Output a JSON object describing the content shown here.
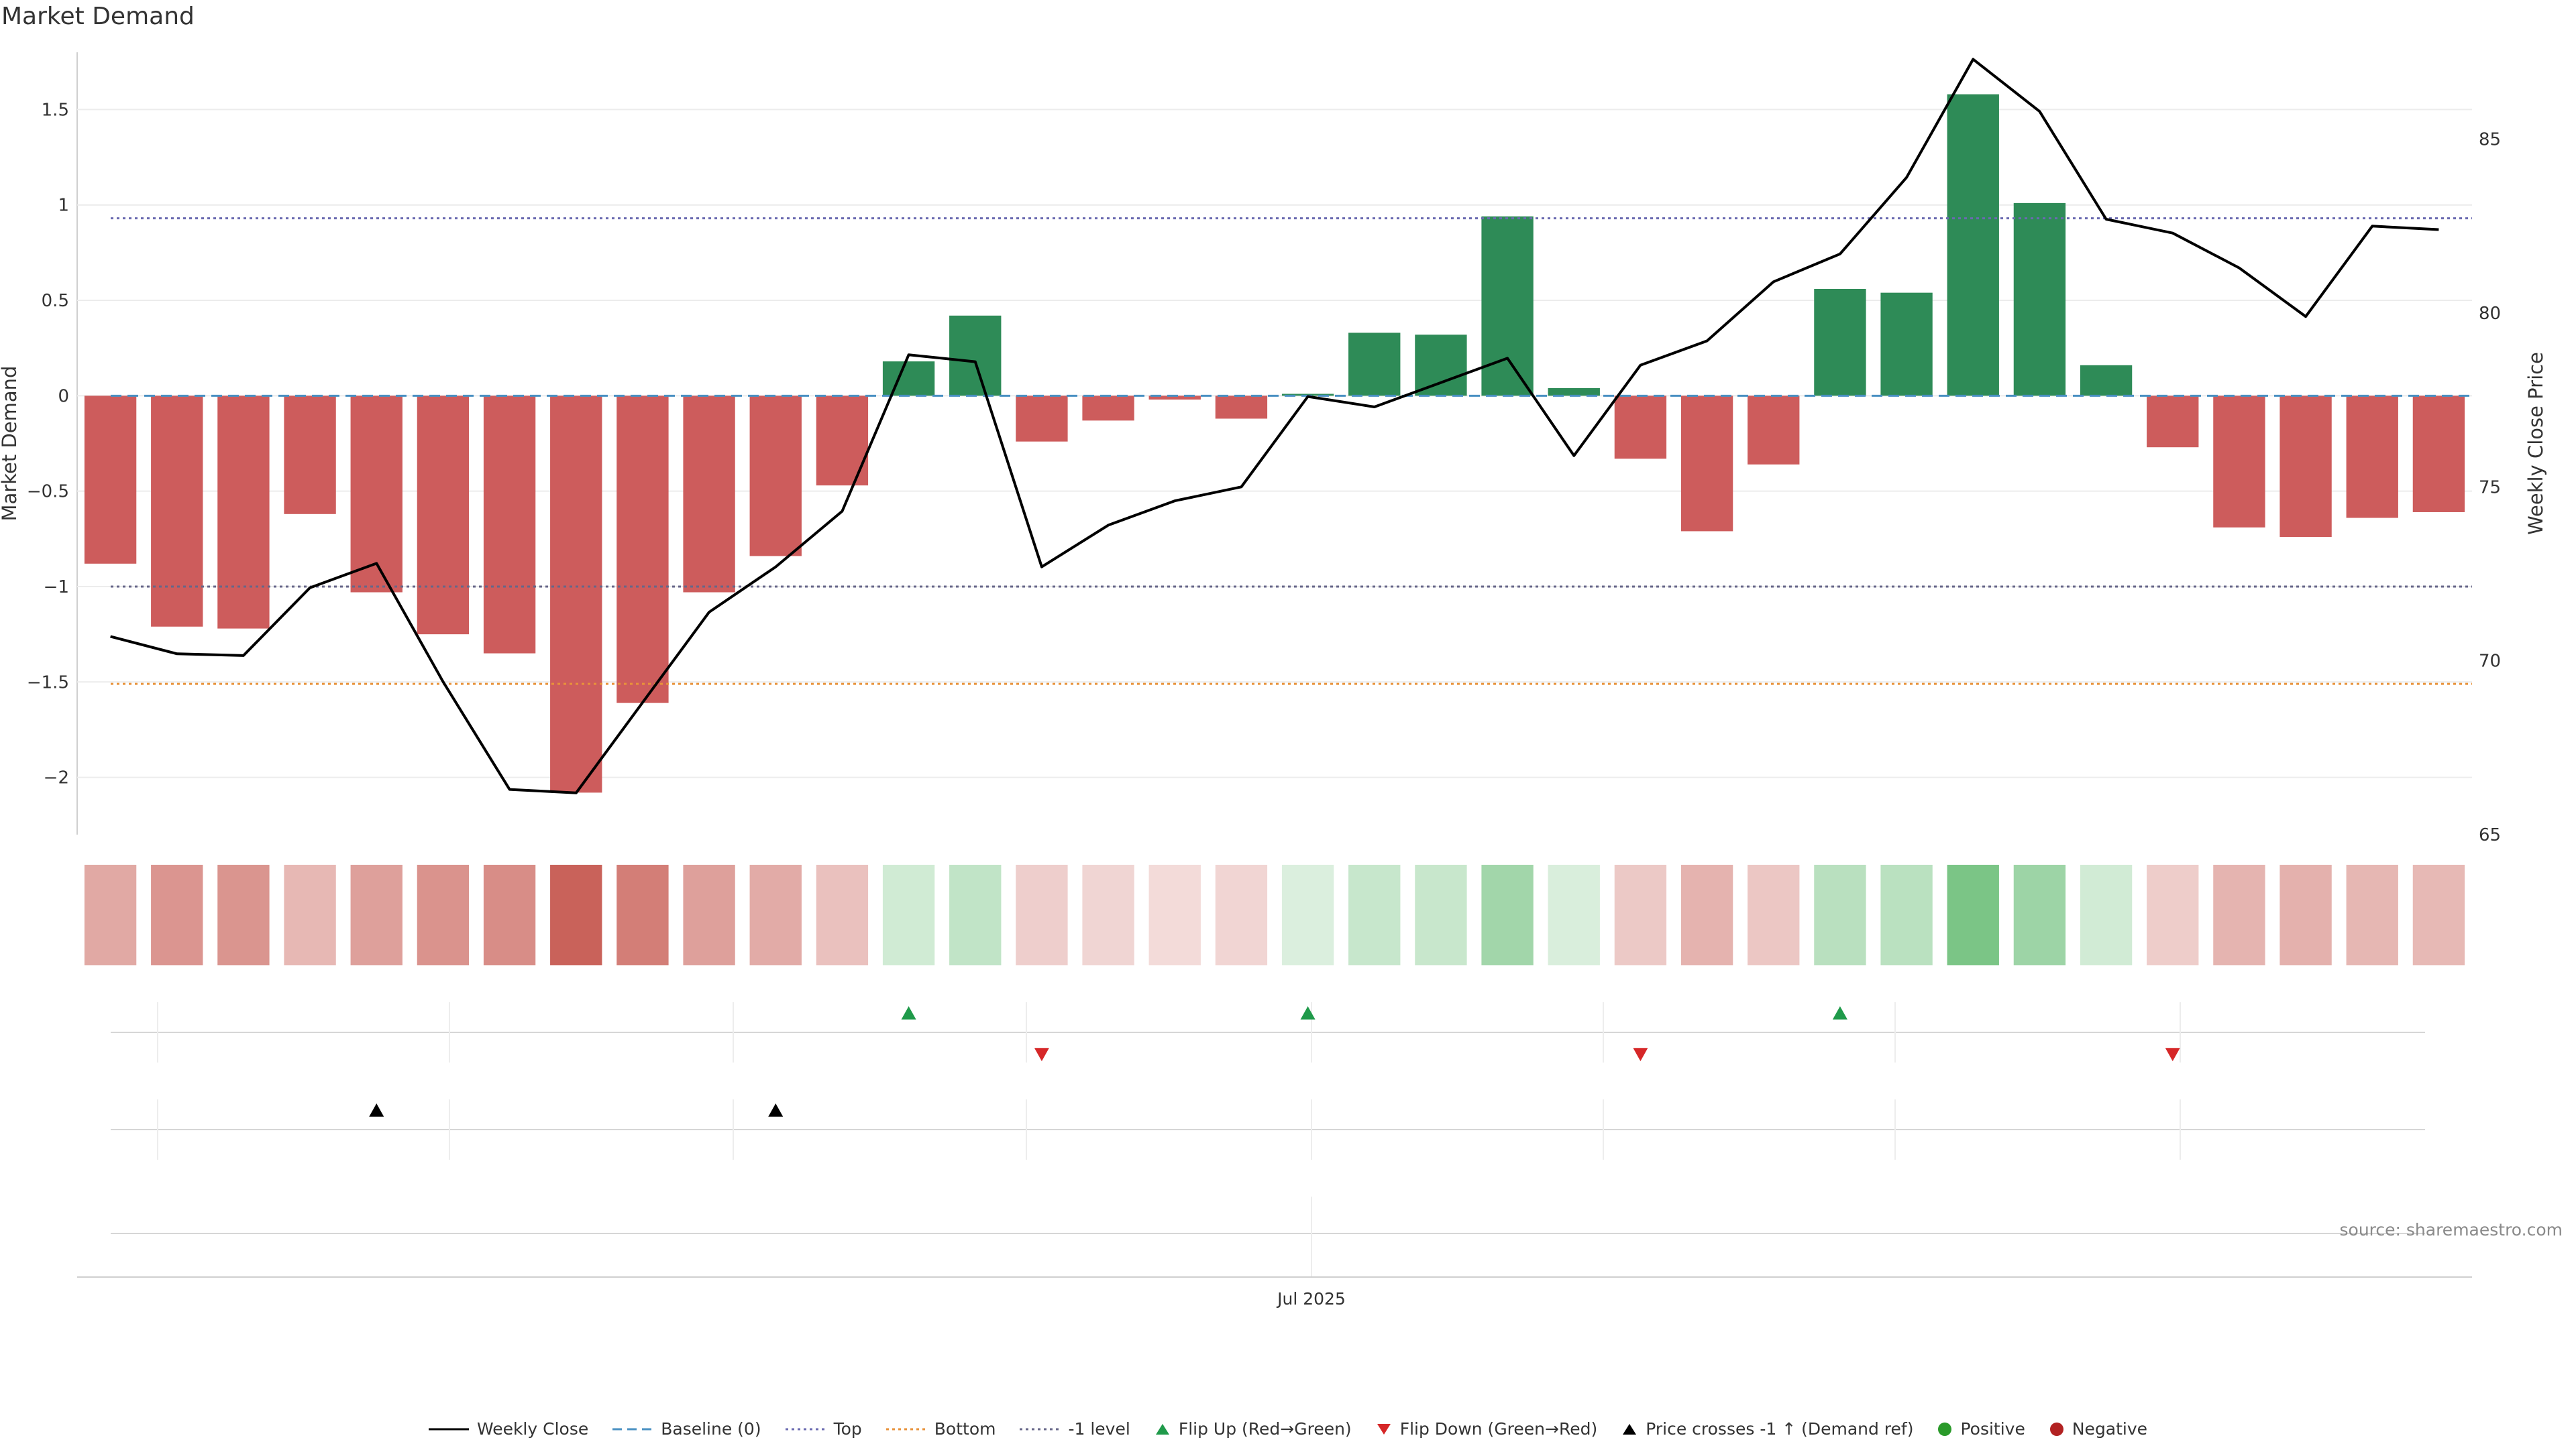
{
  "title": "Market Demand",
  "source": "source: sharemaestro.com",
  "colors": {
    "positive_bar": "#2e8b57",
    "negative_bar": "#cd5c5c",
    "line": "#000000",
    "baseline": "#4a90c2",
    "top": "#6a6ab0",
    "bottom": "#e8923a",
    "minus1": "#666688",
    "flip_up": "#1f9a4a",
    "flip_down": "#d62728",
    "price_cross": "#000000",
    "positive_dot": "#2a9a2a",
    "negative_dot": "#b22222"
  },
  "chart_data": {
    "type": "bar",
    "title": "Market Demand",
    "ylabel": "Market Demand",
    "y2label": "Weekly Close Price",
    "xtick_label": "Jul 2025",
    "ylim": [
      -2.3,
      1.8
    ],
    "y2lim": [
      65,
      87.5
    ],
    "yticks": [
      1.5,
      1,
      0.5,
      0,
      -0.5,
      -1,
      -1.5,
      -2
    ],
    "ytick_labels": [
      "1.5",
      "1",
      "0.5",
      "0",
      "−0.5",
      "−1",
      "−1.5",
      "−2"
    ],
    "y2ticks": [
      85,
      80,
      75,
      70,
      65
    ],
    "y2tick_labels": [
      "85",
      "80",
      "75",
      "70",
      "65"
    ],
    "reference_lines": {
      "baseline": 0,
      "top": 0.93,
      "bottom": -1.51,
      "minus1": -1.0
    },
    "demand": [
      -0.88,
      -1.21,
      -1.22,
      -0.62,
      -1.03,
      -1.25,
      -1.35,
      -2.08,
      -1.61,
      -1.03,
      -0.84,
      -0.47,
      0.18,
      0.42,
      -0.24,
      -0.13,
      -0.02,
      -0.12,
      0.01,
      0.33,
      0.32,
      0.94,
      0.04,
      -0.33,
      -0.71,
      -0.36,
      0.56,
      0.54,
      1.58,
      1.01,
      0.16,
      -0.27,
      -0.69,
      -0.74,
      -0.64,
      -0.61
    ],
    "close": [
      70.7,
      70.2,
      70.15,
      72.1,
      72.8,
      69.4,
      66.3,
      66.2,
      68.8,
      71.4,
      72.7,
      74.3,
      78.8,
      78.6,
      72.7,
      73.9,
      74.6,
      75.0,
      77.6,
      77.3,
      78.0,
      78.7,
      75.9,
      78.5,
      79.2,
      80.9,
      81.7,
      83.9,
      87.3,
      85.8,
      82.7,
      82.3,
      81.3,
      79.9,
      82.5,
      82.4
    ],
    "flip_up_indices": [
      12,
      18,
      26
    ],
    "flip_down_indices": [
      14,
      23,
      31
    ],
    "price_cross_indices": [
      4,
      10
    ],
    "legend": [
      {
        "label": "Weekly Close",
        "marker": "line"
      },
      {
        "label": "Baseline (0)",
        "marker": "dash"
      },
      {
        "label": "Top",
        "marker": "dot"
      },
      {
        "label": "Bottom",
        "marker": "dot"
      },
      {
        "label": "-1 level",
        "marker": "dot"
      },
      {
        "label": "Flip Up (Red→Green)",
        "marker": "triangle-up"
      },
      {
        "label": "Flip Down (Green→Red)",
        "marker": "triangle-down"
      },
      {
        "label": "Price crosses -1 ↑ (Demand ref)",
        "marker": "triangle-up"
      },
      {
        "label": "Positive",
        "marker": "circle"
      },
      {
        "label": "Negative",
        "marker": "circle"
      }
    ]
  }
}
